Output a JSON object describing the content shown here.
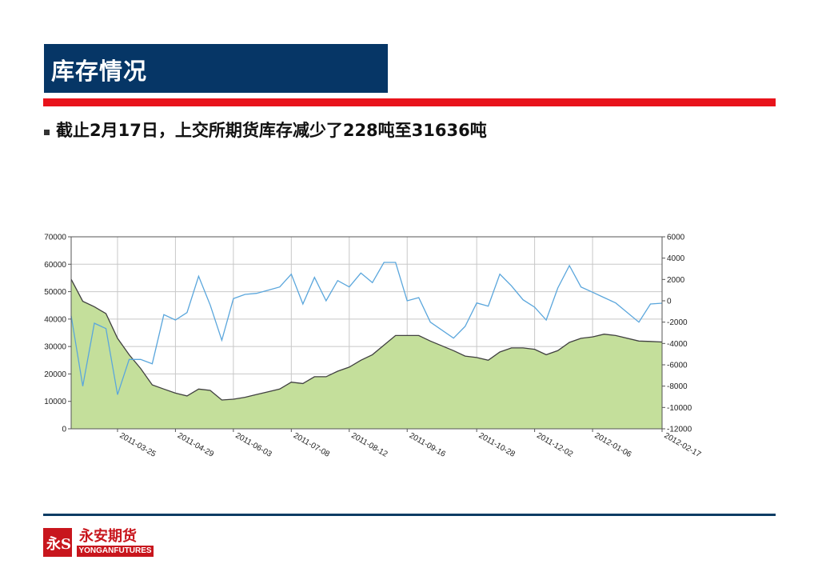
{
  "header": {
    "title": "库存情况"
  },
  "bullet": {
    "text": "截止2月17日，上交所期货库存减少了228吨至31636吨"
  },
  "colors": {
    "title_bg": "#063666",
    "accent_red": "#e8131b",
    "area_fill": "#c4df9b",
    "area_line": "#404040",
    "line_series": "#5aa6dc"
  },
  "chart_data": {
    "type": "area",
    "x_ticks": [
      "2011-03-25",
      "2011-04-29",
      "2011-06-03",
      "2011-07-08",
      "2011-08-12",
      "2011-09-16",
      "2011-10-28",
      "2011-12-02",
      "2012-01-06",
      "2012-02-17"
    ],
    "y_left": {
      "min": 0,
      "max": 70000,
      "ticks": [
        0,
        10000,
        20000,
        30000,
        40000,
        50000,
        60000,
        70000
      ]
    },
    "y_right": {
      "min": -12000,
      "max": 6000,
      "ticks": [
        -12000,
        -10000,
        -8000,
        -6000,
        -4000,
        -2000,
        0,
        2000,
        4000,
        6000
      ]
    },
    "grid": true,
    "series": [
      {
        "axis": "left",
        "kind": "area",
        "x": [
          "2011-02-25",
          "2011-03-04",
          "2011-03-11",
          "2011-03-18",
          "2011-03-25",
          "2011-04-01",
          "2011-04-08",
          "2011-04-15",
          "2011-04-22",
          "2011-04-29",
          "2011-05-06",
          "2011-05-13",
          "2011-05-20",
          "2011-05-27",
          "2011-06-03",
          "2011-06-10",
          "2011-06-17",
          "2011-06-24",
          "2011-07-01",
          "2011-07-08",
          "2011-07-15",
          "2011-07-22",
          "2011-07-29",
          "2011-08-05",
          "2011-08-12",
          "2011-08-19",
          "2011-08-26",
          "2011-09-02",
          "2011-09-09",
          "2011-09-16",
          "2011-09-23",
          "2011-09-30",
          "2011-10-14",
          "2011-10-21",
          "2011-10-28",
          "2011-11-04",
          "2011-11-11",
          "2011-11-18",
          "2011-11-25",
          "2011-12-02",
          "2011-12-09",
          "2011-12-16",
          "2011-12-23",
          "2011-12-30",
          "2012-01-06",
          "2012-01-13",
          "2012-01-20",
          "2012-02-03",
          "2012-02-10",
          "2012-02-17"
        ],
        "values": [
          54500,
          46500,
          44500,
          42000,
          33000,
          27000,
          22000,
          16000,
          14500,
          13000,
          12000,
          14500,
          14000,
          10500,
          10800,
          11500,
          12500,
          13500,
          14500,
          17000,
          16500,
          19000,
          19000,
          21000,
          22500,
          25000,
          27000,
          30500,
          34000,
          34000,
          34000,
          32000,
          28500,
          26500,
          26000,
          25000,
          28000,
          29500,
          29500,
          29000,
          27000,
          28500,
          31500,
          33000,
          33500,
          34500,
          34000,
          32000,
          31864,
          31636
        ]
      },
      {
        "axis": "right",
        "kind": "line",
        "x": [
          "2011-02-25",
          "2011-03-04",
          "2011-03-11",
          "2011-03-18",
          "2011-03-25",
          "2011-04-01",
          "2011-04-08",
          "2011-04-15",
          "2011-04-22",
          "2011-04-29",
          "2011-05-06",
          "2011-05-13",
          "2011-05-20",
          "2011-05-27",
          "2011-06-03",
          "2011-06-10",
          "2011-06-17",
          "2011-06-24",
          "2011-07-01",
          "2011-07-08",
          "2011-07-15",
          "2011-07-22",
          "2011-07-29",
          "2011-08-05",
          "2011-08-12",
          "2011-08-19",
          "2011-08-26",
          "2011-09-02",
          "2011-09-09",
          "2011-09-16",
          "2011-09-23",
          "2011-09-30",
          "2011-10-14",
          "2011-10-21",
          "2011-10-28",
          "2011-11-04",
          "2011-11-11",
          "2011-11-18",
          "2011-11-25",
          "2011-12-02",
          "2011-12-09",
          "2011-12-16",
          "2011-12-23",
          "2011-12-30",
          "2012-01-06",
          "2012-01-13",
          "2012-01-20",
          "2012-02-03",
          "2012-02-10",
          "2012-02-17"
        ],
        "values": [
          -1400,
          -8000,
          -2100,
          -2600,
          -8800,
          -5500,
          -5500,
          -5900,
          -1300,
          -1800,
          -1100,
          2300,
          -400,
          -3700,
          200,
          600,
          700,
          1000,
          1300,
          2500,
          -300,
          2200,
          0,
          1900,
          1300,
          2600,
          1700,
          3600,
          3600,
          0,
          300,
          -2000,
          -3500,
          -2400,
          -200,
          -500,
          2500,
          1400,
          100,
          -600,
          -1800,
          1200,
          3300,
          1300,
          800,
          300,
          -200,
          -2000,
          -300,
          -228
        ]
      }
    ]
  },
  "logo": {
    "cn": "永安期货",
    "en": "YONGANFUTURES",
    "mark": "永S"
  }
}
